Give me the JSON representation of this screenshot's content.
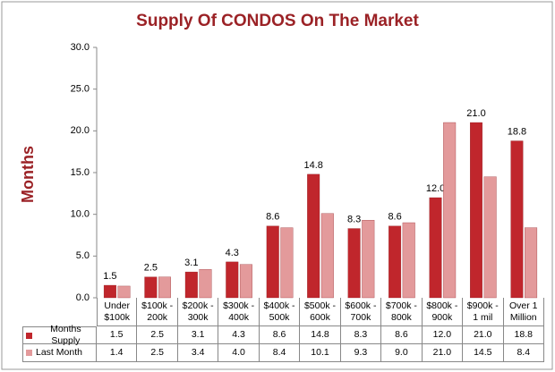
{
  "chart_data": {
    "type": "bar",
    "title": "Supply Of CONDOS On The Market",
    "y_label": "Months",
    "categories": [
      "Under\n$100k",
      "$100k -\n200k",
      "$200k -\n300k",
      "$300k -\n400k",
      "$400k -\n500k",
      "$500k -\n600k",
      "$600k -\n700k",
      "$700k -\n800k",
      "$800k -\n900k",
      "$900k -\n1 mil",
      "Over 1\nMillion"
    ],
    "series": [
      {
        "name": "Months Supply",
        "color": "#c0262c",
        "values": [
          1.5,
          2.5,
          3.1,
          4.3,
          8.6,
          14.8,
          8.3,
          8.6,
          12.0,
          21.0,
          18.8
        ],
        "value_labels": [
          "1.5",
          "2.5",
          "3.1",
          "4.3",
          "8.6",
          "14.8",
          "8.3",
          "8.6",
          "12.0",
          "21.0",
          "18.8"
        ]
      },
      {
        "name": "Last Month",
        "color": "#e39a9b",
        "values": [
          1.4,
          2.5,
          3.4,
          4.0,
          8.4,
          10.1,
          9.3,
          9.0,
          21.0,
          14.5,
          8.4
        ],
        "value_labels": [
          "1.4",
          "2.5",
          "3.4",
          "4.0",
          "8.4",
          "10.1",
          "9.3",
          "9.0",
          "21.0",
          "14.5",
          "8.4"
        ]
      }
    ],
    "ylim": [
      0,
      30
    ],
    "yticks": [
      {
        "value": 0,
        "label": "0.0"
      },
      {
        "value": 5,
        "label": "5.0"
      },
      {
        "value": 10,
        "label": "10.0"
      },
      {
        "value": 15,
        "label": "15.0"
      },
      {
        "value": 20,
        "label": "20.0"
      },
      {
        "value": 25,
        "label": "25.0"
      },
      {
        "value": 30,
        "label": "30.0"
      }
    ],
    "grid": false
  }
}
